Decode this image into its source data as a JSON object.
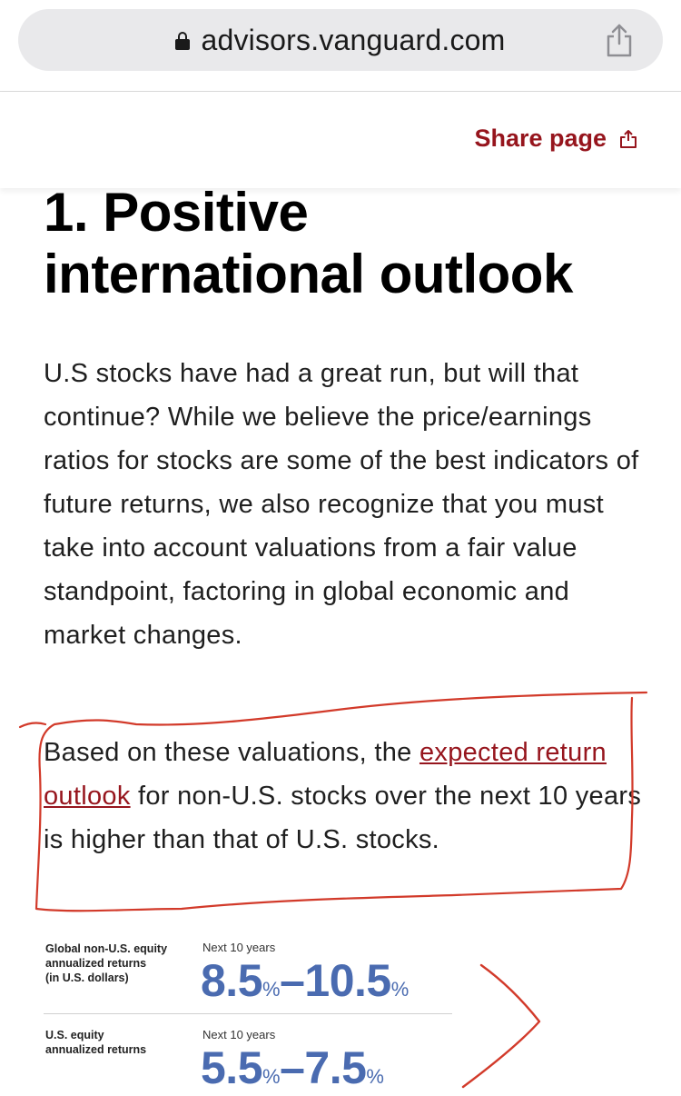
{
  "browser": {
    "url": "advisors.vanguard.com"
  },
  "header": {
    "share_label": "Share page"
  },
  "article": {
    "heading_line1": "1. Positive",
    "heading_line2": "international outlook",
    "paragraph1": "U.S stocks have had a great run, but will that continue? While we believe the price/earnings ratios for stocks are some of the best indicators of future returns, we also recognize that you must take into account valuations from a fair value standpoint, factoring in global economic and market changes.",
    "paragraph2_pre": "Based on these valuations, the ",
    "paragraph2_link": "expected return outlook",
    "paragraph2_post": " for non-U.S. stocks over the next 10 years is higher than that of U.S. stocks."
  },
  "stats": [
    {
      "label_lines": [
        "Global non-U.S. equity",
        "annualized returns",
        "(in U.S. dollars)"
      ],
      "period": "Next 10 years",
      "low": "8.5",
      "high": "10.5",
      "unit": "%",
      "dash": "–"
    },
    {
      "label_lines": [
        "U.S. equity",
        "annualized returns"
      ],
      "period": "Next 10 years",
      "low": "5.5",
      "high": "7.5",
      "unit": "%",
      "dash": "–"
    }
  ],
  "colors": {
    "brand_red": "#96151d",
    "stat_blue": "#4a6bb0",
    "annotation_red": "#d23a2a"
  },
  "icons": {
    "lock": "lock-icon",
    "share": "share-icon"
  }
}
